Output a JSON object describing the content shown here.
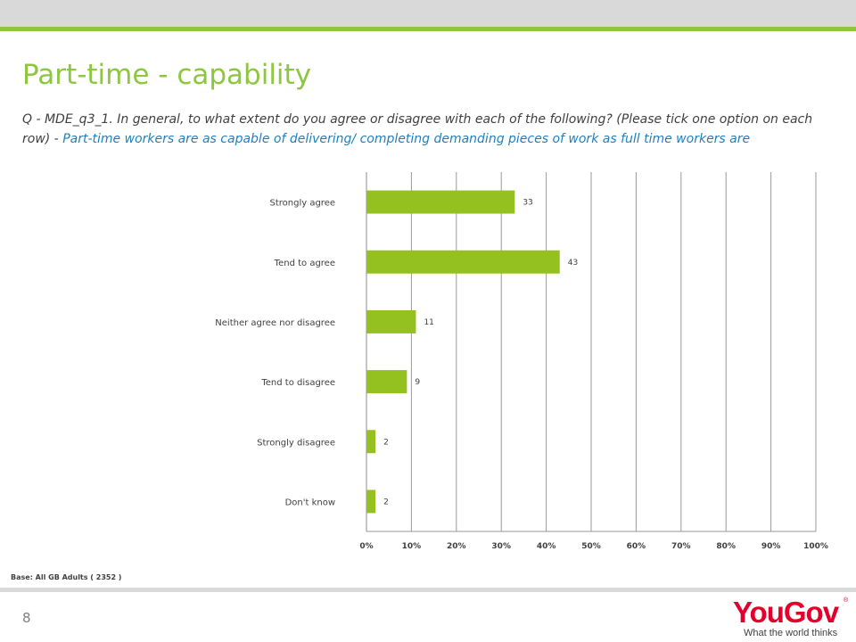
{
  "slide": {
    "title": "Part-time - capability",
    "question_main": "Q - MDE_q3_1. In general, to what extent do you agree or disagree with each of the following? (Please tick one option on each row) - ",
    "question_item": "Part-time workers are as capable of delivering/ completing demanding pieces of work as full time workers are",
    "base_note": "Base: All GB Adults ( 2352 )",
    "page_number": "8"
  },
  "logo": {
    "wordmark": "YouGov",
    "registered": "®",
    "tagline": "What the world thinks"
  },
  "colors": {
    "accent_green": "#8dc63f",
    "bar_green": "#94c11f",
    "question_blue": "#1f7fbf",
    "logo_red": "#e4002b"
  },
  "chart_data": {
    "type": "bar",
    "orientation": "horizontal",
    "categories": [
      "Strongly agree",
      "Tend to agree",
      "Neither agree nor disagree",
      "Tend to disagree",
      "Strongly disagree",
      "Don't know"
    ],
    "values": [
      33,
      43,
      11,
      9,
      2,
      2
    ],
    "xlim": [
      0,
      100
    ],
    "x_ticks": [
      "0%",
      "10%",
      "20%",
      "30%",
      "40%",
      "50%",
      "60%",
      "70%",
      "80%",
      "90%",
      "100%"
    ],
    "grid": "vertical",
    "legend": "none"
  }
}
